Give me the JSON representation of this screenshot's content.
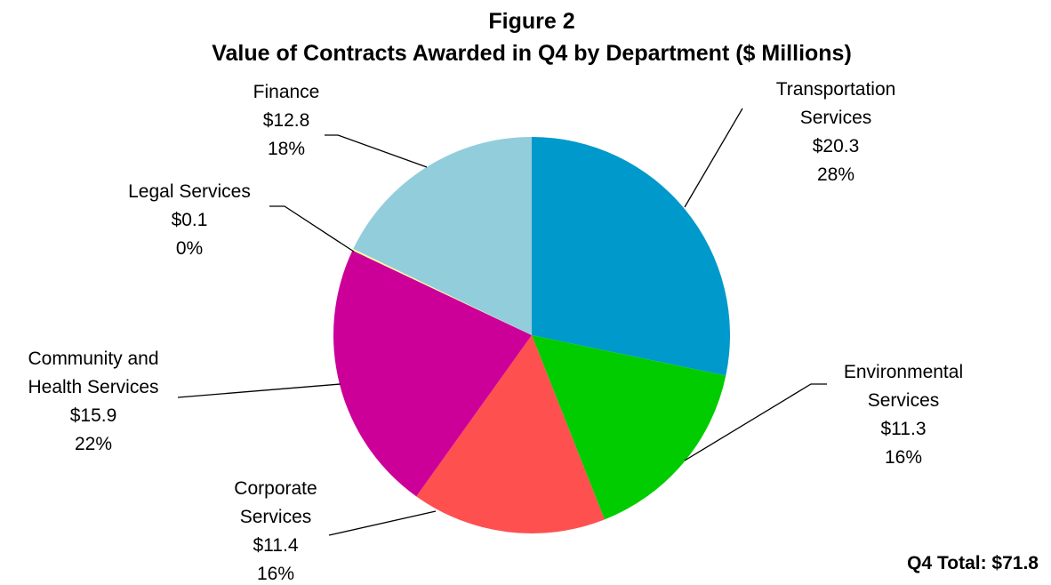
{
  "chart_data": {
    "type": "pie",
    "title": "Figure 2",
    "subtitle": "Value of Contracts Awarded in Q4 by Department ($ Millions)",
    "categories": [
      "Transportation\nServices",
      "Environmental\nServices",
      "Corporate\nServices",
      "Community and\nHealth Services",
      "Legal Services",
      "Finance"
    ],
    "values": [
      20.3,
      11.3,
      11.4,
      15.9,
      0.1,
      12.8
    ],
    "value_labels": [
      "$20.3",
      "$11.3",
      "$11.4",
      "$15.9",
      "$0.1",
      "$12.8"
    ],
    "percent_labels": [
      "28%",
      "16%",
      "16%",
      "22%",
      "0%",
      "18%"
    ],
    "colors": [
      "#0099cc",
      "#00cc00",
      "#ff5050",
      "#cc0099",
      "#ffff99",
      "#92cddc"
    ],
    "annotation": "Q4 Total: $71.8"
  }
}
